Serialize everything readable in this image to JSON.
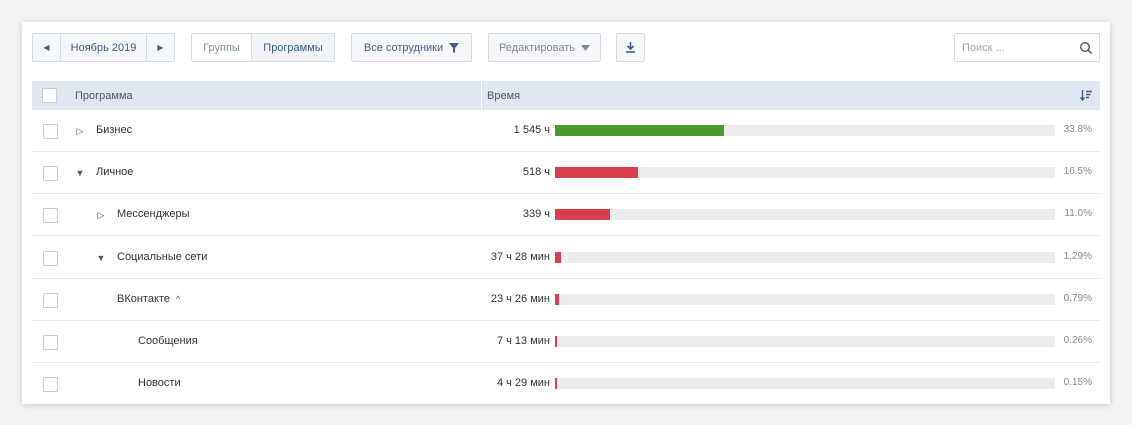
{
  "toolbar": {
    "prev_icon": "◀",
    "next_icon": "▶",
    "period": "Ноябрь 2019",
    "tabs": [
      "Группы",
      "Программы"
    ],
    "employees_label": "Все сотрудники",
    "filter_icon": "funnel-icon",
    "edit_label": "Редактировать",
    "download_icon": "download-icon"
  },
  "search": {
    "placeholder": "Поиск ..."
  },
  "table": {
    "col_program": "Программа",
    "col_time": "Время",
    "sort_icon": "sort-desc-icon",
    "rows": [
      {
        "name": "Бизнес",
        "time": "1 545 ч",
        "percent": "33.8%",
        "share": 33.8,
        "color": "#4a9a2c",
        "toggle": "▷",
        "level": 0
      },
      {
        "name": "Личное",
        "time": "518 ч",
        "percent": "16.5%",
        "share": 16.5,
        "color": "#d9404f",
        "toggle": "▼",
        "level": 0
      },
      {
        "name": "Мессенджеры",
        "time": "339 ч",
        "percent": "11.0%",
        "share": 11.0,
        "color": "#d9404f",
        "toggle": "▷",
        "level": 1
      },
      {
        "name": "Социальные сети",
        "time": "37 ч 28 мин",
        "percent": "1.29%",
        "share": 1.29,
        "color": "#d9404f",
        "toggle": "▼",
        "level": 1
      },
      {
        "name": "ВКонтакте",
        "time": "23 ч 26 мин",
        "percent": "0.79%",
        "share": 0.79,
        "color": "#d9404f",
        "caret": "^",
        "level": 2
      },
      {
        "name": "Сообщения",
        "time": "7 ч 13 мин",
        "percent": "0.26%",
        "share": 0.26,
        "color": "#d9404f",
        "level": 3
      },
      {
        "name": "Новости",
        "time": "4 ч 29 мин",
        "percent": "0.15%",
        "share": 0.15,
        "color": "#d9404f",
        "level": 3
      }
    ]
  }
}
